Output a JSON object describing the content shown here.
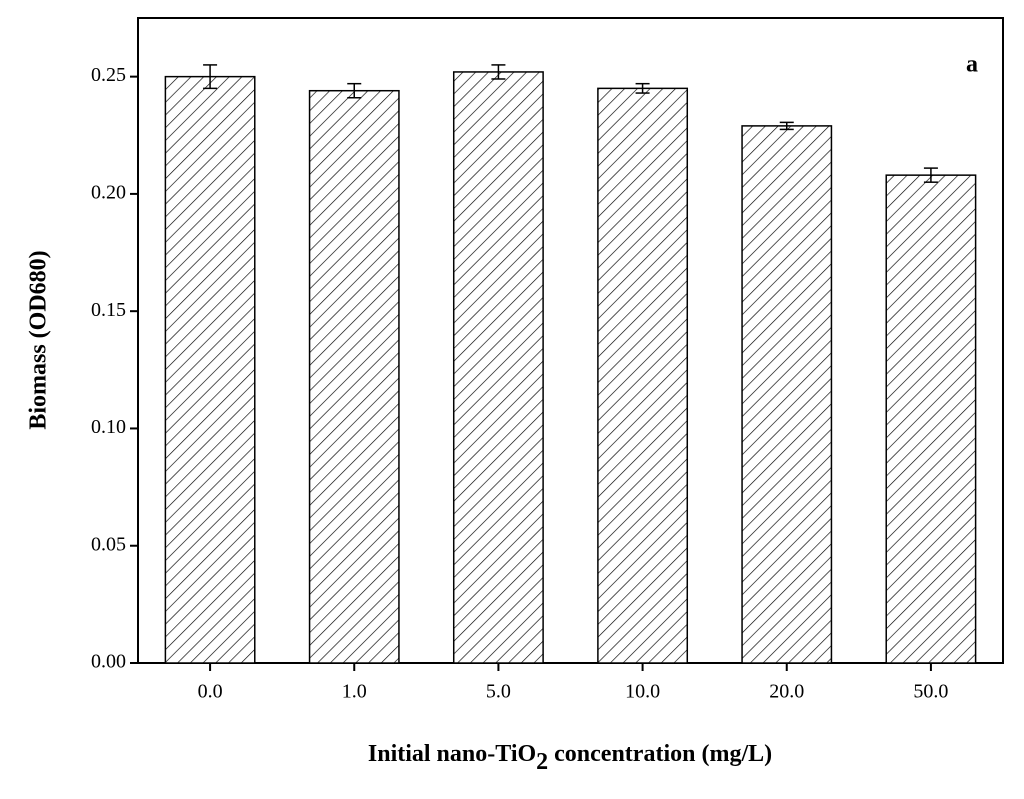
{
  "chart_data": {
    "type": "bar",
    "categories": [
      "0.0",
      "1.0",
      "5.0",
      "10.0",
      "20.0",
      "50.0"
    ],
    "values": [
      0.25,
      0.244,
      0.252,
      0.245,
      0.229,
      0.208
    ],
    "errors": [
      0.005,
      0.003,
      0.003,
      0.002,
      0.0015,
      0.003
    ],
    "color": "#000000",
    "ylim": [
      0,
      0.275
    ],
    "yticks": [
      {
        "value": 0,
        "label": "0.00"
      },
      {
        "value": 0.05,
        "label": "0.05"
      },
      {
        "value": 0.1,
        "label": "0.10"
      },
      {
        "value": 0.15,
        "label": "0.15"
      },
      {
        "value": 0.2,
        "label": "0.20"
      },
      {
        "value": 0.25,
        "label": "0.25"
      }
    ],
    "y_label": "Biomass (OD680)",
    "x_label": [
      "Initial nano-TiO",
      "2",
      " concentration (mg/L)"
    ],
    "annotation": "a"
  }
}
